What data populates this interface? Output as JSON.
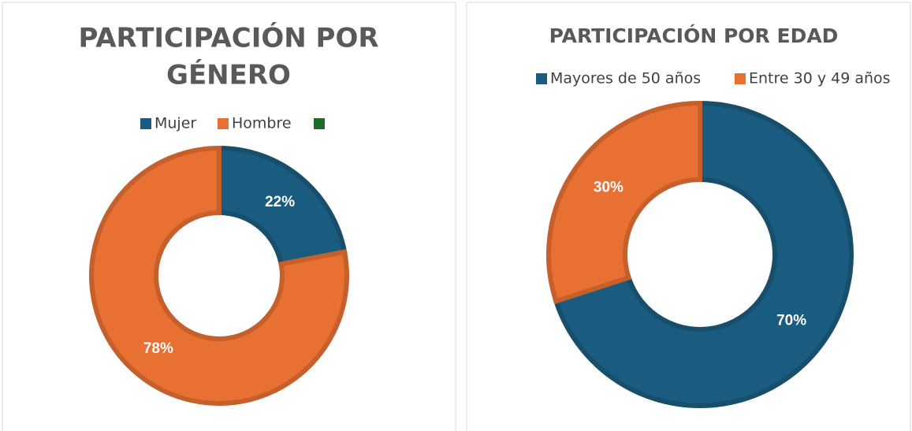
{
  "chart_data": [
    {
      "type": "donut",
      "title": [
        "PARTICIPACIÓN POR",
        "GÉNERO"
      ],
      "categories": [
        "Mujer",
        "Hombre",
        null
      ],
      "values": [
        22,
        78,
        0
      ],
      "value_labels": [
        "22%",
        "78%",
        null
      ],
      "colors": [
        "#1a5c7f",
        "#e87032",
        "#1e6b2a"
      ]
    },
    {
      "type": "donut",
      "title": [
        "PARTICIPACIÓN POR EDAD"
      ],
      "categories": [
        "Mayores de 50 años",
        "Entre 30 y 49 años"
      ],
      "values": [
        70,
        30
      ],
      "value_labels": [
        "70%",
        "30%"
      ],
      "colors": [
        "#1a5c7f",
        "#e87032"
      ]
    }
  ]
}
